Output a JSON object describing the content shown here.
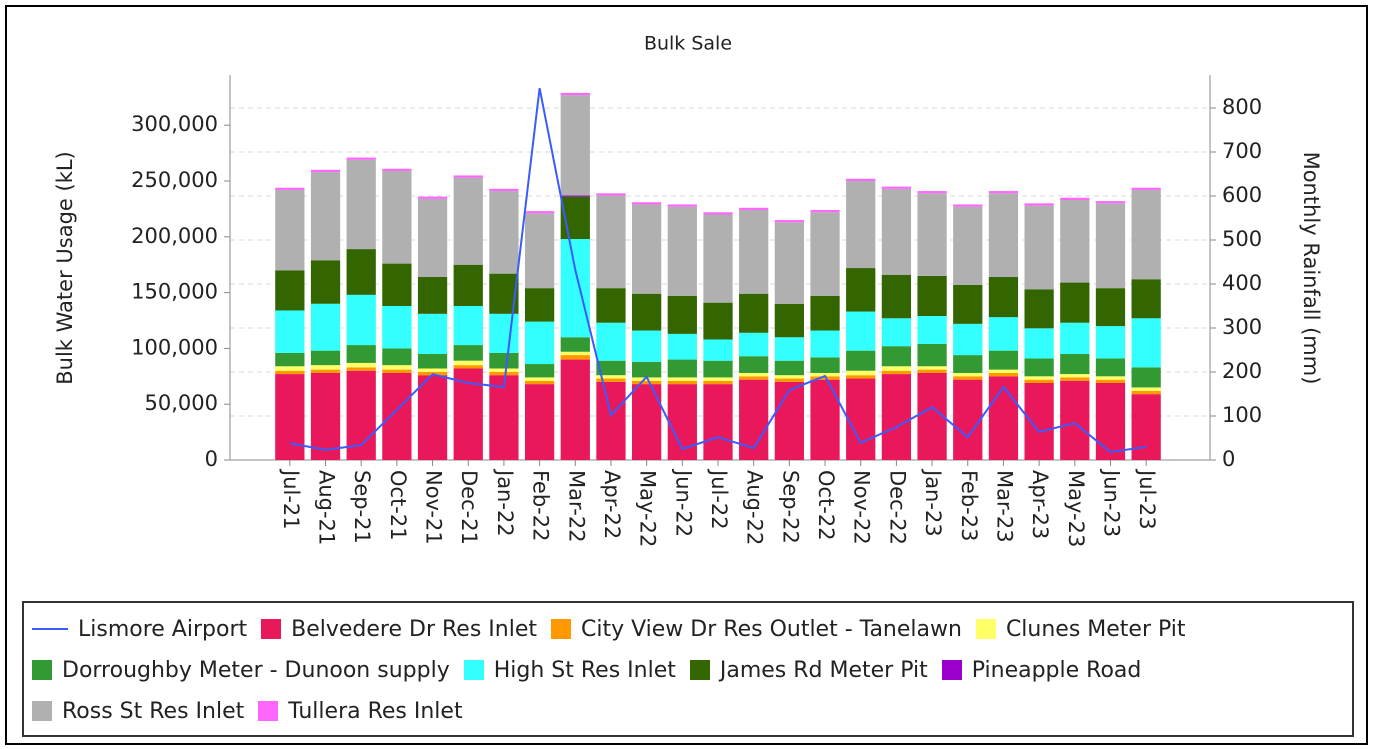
{
  "chart_data": {
    "type": "bar",
    "stacked": true,
    "title": "Bulk Sale",
    "ylabel": "Bulk Water Usage (kL)",
    "y2label": "Monthly Rainfall (mm)",
    "categories": [
      "Jul-21",
      "Aug-21",
      "Sep-21",
      "Oct-21",
      "Nov-21",
      "Dec-21",
      "Jan-22",
      "Feb-22",
      "Mar-22",
      "Apr-22",
      "May-22",
      "Jun-22",
      "Jul-22",
      "Aug-22",
      "Sep-22",
      "Oct-22",
      "Nov-22",
      "Dec-22",
      "Jan-23",
      "Feb-23",
      "Mar-23",
      "Apr-23",
      "May-23",
      "Jun-23",
      "Jul-23"
    ],
    "ylim": [
      0,
      345000
    ],
    "yticks": [
      0,
      {
        "value": 50000,
        "label": "50,000"
      },
      {
        "value": 100000,
        "label": "100,000"
      },
      {
        "value": 150000,
        "label": "150,000"
      },
      {
        "value": 200000,
        "label": "200,000"
      },
      {
        "value": 250000,
        "label": "250,000"
      },
      {
        "value": 300000,
        "label": "300,000"
      }
    ],
    "y2lim": [
      0,
      875
    ],
    "y2ticks": [
      0,
      100,
      200,
      300,
      400,
      500,
      600,
      700,
      800
    ],
    "grid": "y2",
    "series": [
      {
        "name": "Lismore Airport",
        "type": "line",
        "axis": "y2",
        "color": "#3b5bff",
        "values": [
          38,
          23,
          34,
          114,
          195,
          175,
          166,
          845,
          432,
          102,
          189,
          25,
          52,
          27,
          159,
          191,
          39,
          75,
          120,
          52,
          166,
          64,
          84,
          18,
          30
        ]
      },
      {
        "name": "Belvedere Dr Res Inlet",
        "color": "#e8185a",
        "values": [
          77000,
          78000,
          80000,
          78000,
          76000,
          82000,
          76000,
          68000,
          90000,
          70000,
          68000,
          68000,
          68000,
          72000,
          70000,
          72000,
          73000,
          77000,
          78000,
          72000,
          75000,
          69000,
          71000,
          69000,
          59000
        ]
      },
      {
        "name": "City View Dr Res Outlet - Tanelawn",
        "color": "#ff9900",
        "values": [
          3000,
          3000,
          3000,
          3000,
          3000,
          3000,
          3000,
          3000,
          4000,
          3000,
          3000,
          3000,
          3000,
          3000,
          3000,
          3000,
          3000,
          3000,
          3000,
          3000,
          3000,
          3000,
          3000,
          3000,
          3000
        ]
      },
      {
        "name": "Clunes Meter Pit",
        "color": "#ffff66",
        "values": [
          4000,
          4000,
          4000,
          4000,
          3000,
          4000,
          3000,
          3000,
          3000,
          3000,
          3000,
          3000,
          3000,
          3000,
          3000,
          3000,
          4000,
          4000,
          3000,
          3000,
          3000,
          3000,
          3000,
          3000,
          3000
        ]
      },
      {
        "name": "Dorroughby Meter - Dunoon supply",
        "color": "#339933",
        "values": [
          12000,
          13000,
          16000,
          15000,
          13000,
          14000,
          14000,
          12000,
          13000,
          13000,
          14000,
          16000,
          15000,
          15000,
          13000,
          14000,
          18000,
          18000,
          20000,
          16000,
          17000,
          16000,
          18000,
          16000,
          18000
        ]
      },
      {
        "name": "High St Res Inlet",
        "color": "#33ffff",
        "values": [
          38000,
          42000,
          45000,
          38000,
          36000,
          35000,
          35000,
          38000,
          88000,
          34000,
          28000,
          23000,
          19000,
          21000,
          21000,
          24000,
          35000,
          25000,
          25000,
          28000,
          30000,
          27000,
          28000,
          29000,
          44000
        ]
      },
      {
        "name": "James Rd Meter Pit",
        "color": "#336600",
        "values": [
          36000,
          39000,
          41000,
          38000,
          33000,
          37000,
          36000,
          30000,
          38000,
          31000,
          33000,
          34000,
          33000,
          35000,
          30000,
          31000,
          39000,
          39000,
          36000,
          35000,
          36000,
          35000,
          36000,
          34000,
          35000
        ]
      },
      {
        "name": "Pineapple Road",
        "color": "#9900cc",
        "values": [
          0,
          0,
          0,
          0,
          0,
          0,
          0,
          0,
          1000,
          0,
          0,
          0,
          0,
          0,
          0,
          0,
          0,
          0,
          0,
          0,
          0,
          0,
          0,
          0,
          0
        ]
      },
      {
        "name": "Ross St Res Inlet",
        "color": "#b0b0b0",
        "values": [
          72000,
          79000,
          80000,
          83000,
          70000,
          78000,
          74000,
          67000,
          90000,
          83000,
          80000,
          80000,
          79000,
          75000,
          73000,
          75000,
          78000,
          77000,
          74000,
          70000,
          75000,
          75000,
          74000,
          76000,
          80000
        ]
      },
      {
        "name": "Tullera Res Inlet",
        "color": "#ff66ff",
        "values": [
          2000,
          2000,
          2000,
          2000,
          2000,
          2000,
          2000,
          2000,
          2000,
          2000,
          2000,
          2000,
          2000,
          2000,
          2000,
          2000,
          2000,
          2000,
          2000,
          2000,
          2000,
          2000,
          2000,
          2000,
          2000
        ]
      }
    ]
  }
}
